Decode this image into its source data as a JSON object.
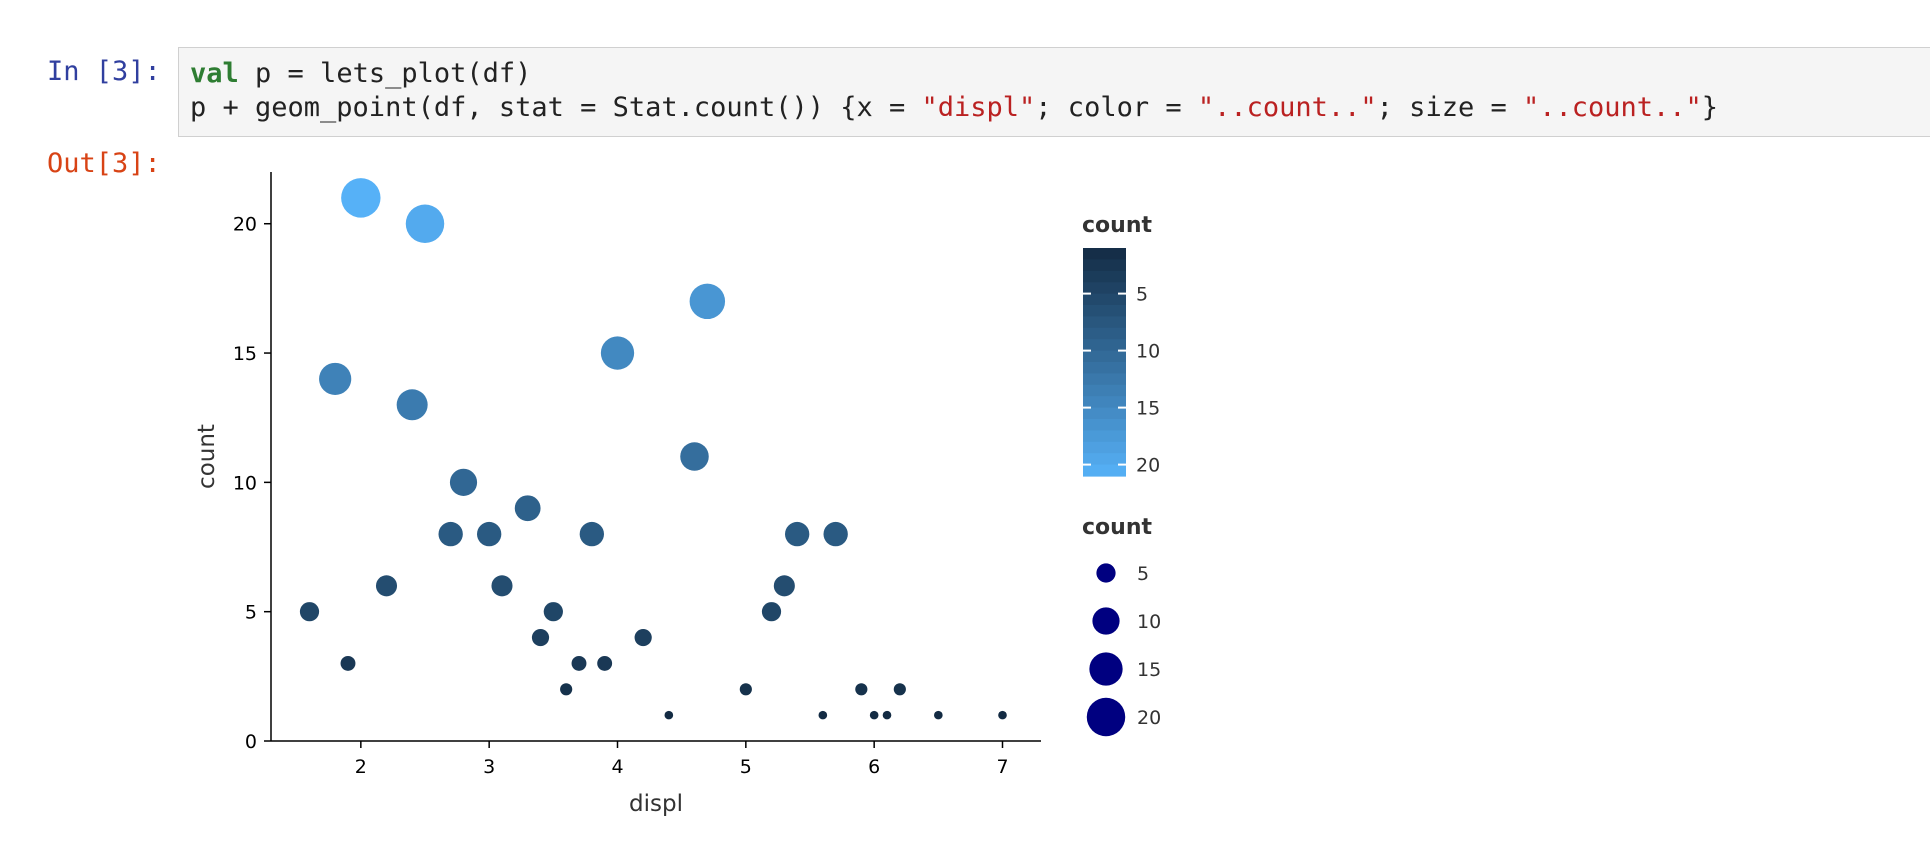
{
  "cell": {
    "in_prompt": "In [3]:",
    "out_prompt": "Out[3]:",
    "code_line_1": [
      {
        "text": "val",
        "cls": "kw"
      },
      {
        "text": " p = lets_plot(df)",
        "cls": ""
      }
    ],
    "code_line_2": [
      {
        "text": "p + geom_point(df, stat = Stat.count()) {x = ",
        "cls": ""
      },
      {
        "text": "\"displ\"",
        "cls": "str"
      },
      {
        "text": "; color = ",
        "cls": ""
      },
      {
        "text": "\"..count..\"",
        "cls": "str"
      },
      {
        "text": "; size = ",
        "cls": ""
      },
      {
        "text": "\"..count..\"",
        "cls": "str"
      },
      {
        "text": "}",
        "cls": ""
      }
    ]
  },
  "chart_data": {
    "type": "scatter",
    "xlabel": "displ",
    "ylabel": "count",
    "xlim": [
      1.3,
      7.3
    ],
    "ylim": [
      0,
      22
    ],
    "xticks": [
      2,
      3,
      4,
      5,
      6,
      7
    ],
    "yticks": [
      0,
      5,
      10,
      15,
      20
    ],
    "color_low": "#132b43",
    "color_high": "#56b1f7",
    "size_legend_color": "#000080",
    "points": [
      {
        "x": 1.6,
        "y": 5
      },
      {
        "x": 1.8,
        "y": 14
      },
      {
        "x": 1.9,
        "y": 3
      },
      {
        "x": 2.0,
        "y": 21
      },
      {
        "x": 2.2,
        "y": 6
      },
      {
        "x": 2.4,
        "y": 13
      },
      {
        "x": 2.5,
        "y": 20
      },
      {
        "x": 2.7,
        "y": 8
      },
      {
        "x": 2.8,
        "y": 10
      },
      {
        "x": 3.0,
        "y": 8
      },
      {
        "x": 3.1,
        "y": 6
      },
      {
        "x": 3.3,
        "y": 9
      },
      {
        "x": 3.4,
        "y": 4
      },
      {
        "x": 3.5,
        "y": 5
      },
      {
        "x": 3.6,
        "y": 2
      },
      {
        "x": 3.7,
        "y": 3
      },
      {
        "x": 3.8,
        "y": 8
      },
      {
        "x": 3.9,
        "y": 3
      },
      {
        "x": 4.0,
        "y": 15
      },
      {
        "x": 4.2,
        "y": 4
      },
      {
        "x": 4.4,
        "y": 1
      },
      {
        "x": 4.6,
        "y": 11
      },
      {
        "x": 4.7,
        "y": 17
      },
      {
        "x": 5.0,
        "y": 2
      },
      {
        "x": 5.2,
        "y": 5
      },
      {
        "x": 5.3,
        "y": 6
      },
      {
        "x": 5.4,
        "y": 8
      },
      {
        "x": 5.6,
        "y": 1
      },
      {
        "x": 5.7,
        "y": 8
      },
      {
        "x": 5.9,
        "y": 2
      },
      {
        "x": 6.0,
        "y": 1
      },
      {
        "x": 6.1,
        "y": 1
      },
      {
        "x": 6.2,
        "y": 2
      },
      {
        "x": 6.5,
        "y": 1
      },
      {
        "x": 7.0,
        "y": 1
      }
    ],
    "legends": {
      "color": {
        "title": "count",
        "breaks": [
          5,
          10,
          15,
          20
        ]
      },
      "size": {
        "title": "count",
        "breaks": [
          5,
          10,
          15,
          20
        ]
      }
    }
  }
}
